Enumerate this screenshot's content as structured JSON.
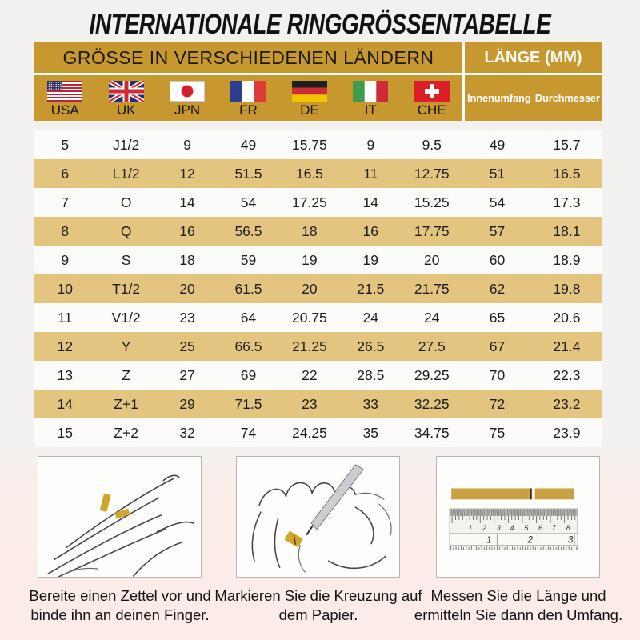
{
  "title": "INTERNATIONALE RINGGRÖSSENTABELLE",
  "colors": {
    "header_gold": "#C7982F",
    "row_gold": "#E3C57F",
    "row_white": "#FBFBFA",
    "bottom_pink": "#FBEDE9",
    "strip_gold": "#D2A62C"
  },
  "table": {
    "header_left": "GRÖSSE IN VERSCHIEDENEN LÄNDERN",
    "header_right": "LÄNGE (MM)",
    "countries": [
      {
        "code": "usa",
        "label": "USA",
        "flag_icon": "usa-flag-icon"
      },
      {
        "code": "uk",
        "label": "UK",
        "flag_icon": "uk-flag-icon"
      },
      {
        "code": "jpn",
        "label": "JPN",
        "flag_icon": "japan-flag-icon"
      },
      {
        "code": "fr",
        "label": "FR",
        "flag_icon": "france-flag-icon"
      },
      {
        "code": "de",
        "label": "DE",
        "flag_icon": "germany-flag-icon"
      },
      {
        "code": "it",
        "label": "IT",
        "flag_icon": "italy-flag-icon"
      },
      {
        "code": "che",
        "label": "CHE",
        "flag_icon": "switzerland-flag-icon"
      }
    ],
    "measure_columns": [
      "Innenumfang",
      "Durchmesser"
    ],
    "rows": [
      [
        "5",
        "J1/2",
        "9",
        "49",
        "15.75",
        "9",
        "9.5",
        "49",
        "15.7"
      ],
      [
        "6",
        "L1/2",
        "12",
        "51.5",
        "16.5",
        "11",
        "12.75",
        "51",
        "16.5"
      ],
      [
        "7",
        "O",
        "14",
        "54",
        "17.25",
        "14",
        "15.25",
        "54",
        "17.3"
      ],
      [
        "8",
        "Q",
        "16",
        "56.5",
        "18",
        "16",
        "17.75",
        "57",
        "18.1"
      ],
      [
        "9",
        "S",
        "18",
        "59",
        "19",
        "19",
        "20",
        "60",
        "18.9"
      ],
      [
        "10",
        "T1/2",
        "20",
        "61.5",
        "20",
        "21.5",
        "21.75",
        "62",
        "19.8"
      ],
      [
        "11",
        "V1/2",
        "23",
        "64",
        "20.75",
        "24",
        "24",
        "65",
        "20.6"
      ],
      [
        "12",
        "Y",
        "25",
        "66.5",
        "21.25",
        "26.5",
        "27.5",
        "67",
        "21.4"
      ],
      [
        "13",
        "Z",
        "27",
        "69",
        "22",
        "28.5",
        "29.25",
        "70",
        "22.3"
      ],
      [
        "14",
        "Z+1",
        "29",
        "71.5",
        "23",
        "33",
        "32.25",
        "72",
        "23.2"
      ],
      [
        "15",
        "Z+2",
        "32",
        "74",
        "24.25",
        "35",
        "34.75",
        "75",
        "23.9"
      ]
    ]
  },
  "steps": [
    {
      "caption": "Bereite einen Zettel vor und binde ihn an deinen Finger.",
      "illustration": "hand-with-paper-strip"
    },
    {
      "caption": "Markieren Sie die Kreuzung auf dem Papier.",
      "illustration": "mark-crossing-with-pen"
    },
    {
      "caption": "Messen Sie die Länge und ermitteln Sie dann den Umfang.",
      "illustration": "measure-with-ruler"
    }
  ],
  "ruler": {
    "top_scale": [
      "1",
      "2",
      "3",
      "4",
      "5",
      "6",
      "7",
      "8"
    ],
    "bottom_scale": [
      "1",
      "2",
      "3"
    ]
  }
}
